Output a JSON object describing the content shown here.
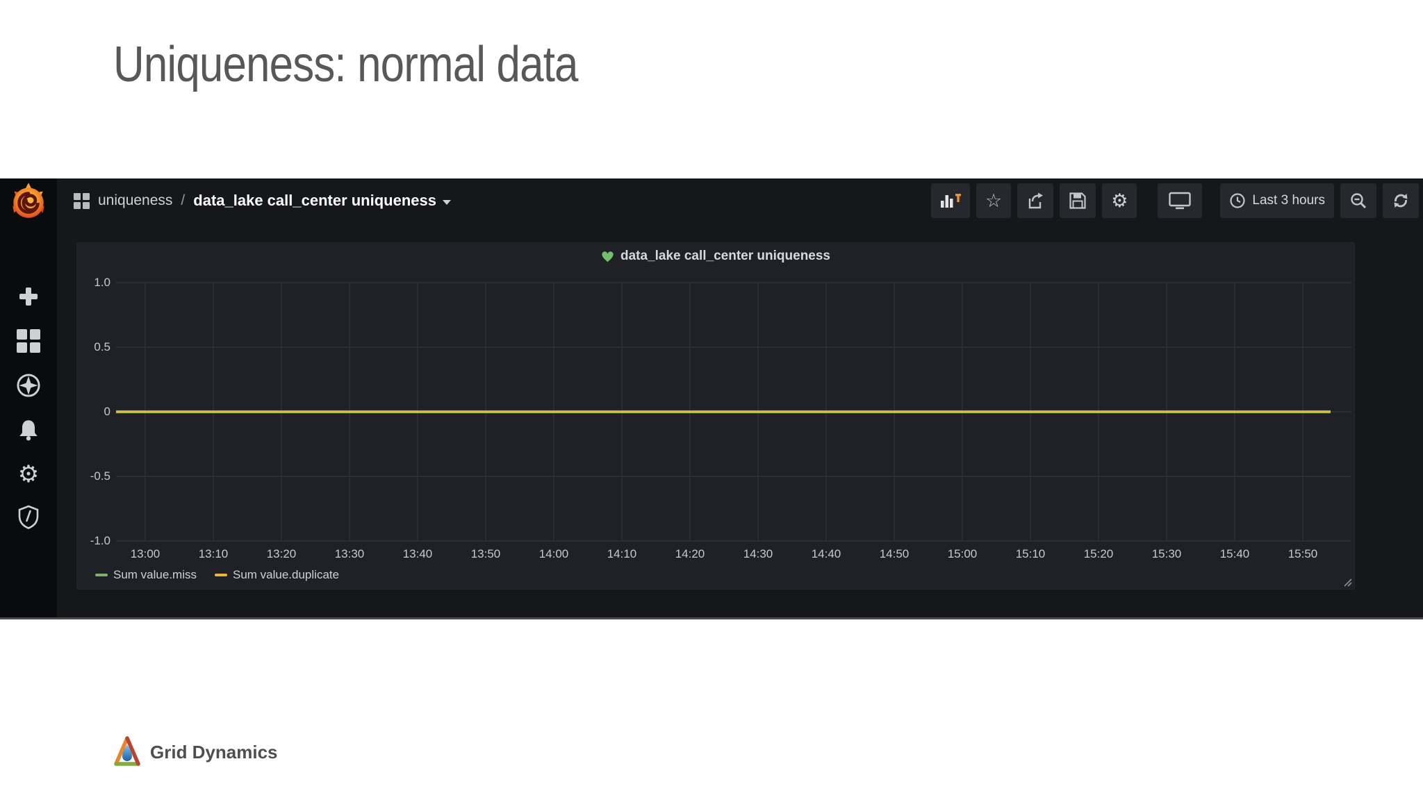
{
  "slide": {
    "title": "Uniqueness: normal data"
  },
  "grafana": {
    "breadcrumb": {
      "section": "uniqueness",
      "separator": "/",
      "page": "data_lake call_center uniqueness"
    },
    "sidebar_items": [
      "grafana-logo",
      "create",
      "dashboards",
      "explore",
      "alerting",
      "configuration",
      "server-admin"
    ],
    "toolbar": {
      "buttons": [
        "add-panel",
        "star",
        "share",
        "save",
        "settings",
        "cycle-view-mode",
        "time-range",
        "zoom-out",
        "refresh"
      ],
      "time_range_label": "Last 3 hours",
      "add_panel_accent": "#ef9032"
    },
    "panel": {
      "title": "data_lake call_center uniqueness",
      "health_icon": "green-heart",
      "health_color": "#73bf69"
    }
  },
  "chart_data": {
    "type": "line",
    "title": "data_lake call_center uniqueness",
    "x": [
      "13:00",
      "13:10",
      "13:20",
      "13:30",
      "13:40",
      "13:50",
      "14:00",
      "14:10",
      "14:20",
      "14:30",
      "14:40",
      "14:50",
      "15:00",
      "15:10",
      "15:20",
      "15:30",
      "15:40",
      "15:50"
    ],
    "series": [
      {
        "name": "Sum value.miss",
        "color": "#7eb26d",
        "values": [
          0,
          0,
          0,
          0,
          0,
          0,
          0,
          0,
          0,
          0,
          0,
          0,
          0,
          0,
          0,
          0,
          0,
          0
        ]
      },
      {
        "name": "Sum value.duplicate",
        "color": "#eab839",
        "values": [
          0,
          0,
          0,
          0,
          0,
          0,
          0,
          0,
          0,
          0,
          0,
          0,
          0,
          0,
          0,
          0,
          0,
          0
        ]
      }
    ],
    "ylim": [
      -1.0,
      1.0
    ],
    "yticks": [
      1.0,
      0.5,
      0,
      -0.5,
      -1.0
    ],
    "ytick_labels": [
      "1.0",
      "0.5",
      "0",
      "-0.5",
      "-1.0"
    ],
    "xlabel": "",
    "ylabel": "",
    "grid": true,
    "legend_position": "bottom-left",
    "time_range": "Last 3 hours"
  },
  "footer": {
    "brand": "Grid Dynamics"
  }
}
